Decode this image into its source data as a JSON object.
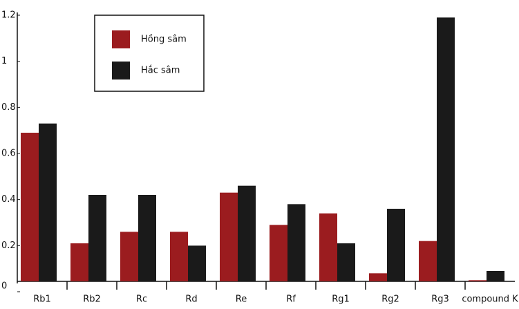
{
  "chart_data": {
    "type": "bar",
    "categories": [
      "Rb1",
      "Rb2",
      "Rc",
      "Rd",
      "Re",
      "Rf",
      "Rg1",
      "Rg2",
      "Rg3",
      "compound K"
    ],
    "series": [
      {
        "name": "Hồng sâm",
        "color": "#9b1c1f",
        "values": [
          0.69,
          0.21,
          0.26,
          0.26,
          0.43,
          0.29,
          0.34,
          0.08,
          0.22,
          0.05
        ]
      },
      {
        "name": "Hắc sâm",
        "color": "#1a1a1a",
        "values": [
          0.73,
          0.42,
          0.42,
          0.2,
          0.46,
          0.38,
          0.21,
          0.36,
          1.19,
          0.09
        ]
      }
    ],
    "ylim": [
      0,
      1.2
    ],
    "yticks": [
      0,
      0.2,
      0.4,
      0.6,
      0.8,
      1,
      1.2
    ],
    "legend": "top-left"
  }
}
